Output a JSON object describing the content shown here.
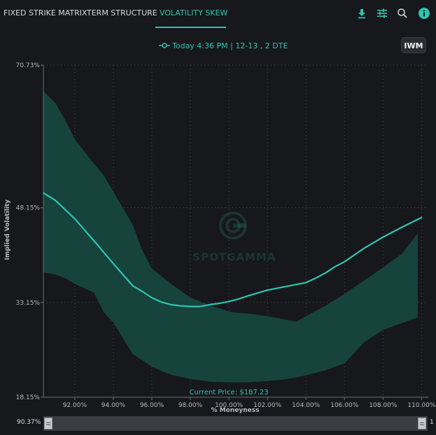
{
  "tabs": [
    {
      "label": "FIXED STRIKE MATRIX",
      "active": false
    },
    {
      "label": "TERM STRUCTURE",
      "active": false
    },
    {
      "label": "VOLATILITY SKEW",
      "active": true
    }
  ],
  "toolbar": {
    "icons": [
      "download-icon",
      "sliders-icon",
      "search-icon",
      "info-icon"
    ]
  },
  "legend": {
    "label": "Today 4:36 PM | 12-13 , 2 DTE"
  },
  "symbol_button": {
    "label": "IWM"
  },
  "watermark": {
    "text": "SPOTGAMMA"
  },
  "range": {
    "left_label": "90.37%",
    "right_label": "1"
  },
  "colors": {
    "accent": "#2fc4b0",
    "band_fill": "#17433d",
    "background": "#17181c"
  },
  "chart_data": {
    "type": "area",
    "xlabel": "% Moneyness",
    "ylabel": "Implied Volatility",
    "xlim": [
      90.37,
      110.35
    ],
    "ylim": [
      18.15,
      70.73
    ],
    "x_ticks": [
      92,
      94,
      96,
      98,
      100,
      102,
      104,
      106,
      108,
      110
    ],
    "x_tick_labels": [
      "92.00%",
      "94.00%",
      "96.00%",
      "98.00%",
      "100.00%",
      "102.00%",
      "104.00%",
      "106.00%",
      "108.00%",
      "110.00%"
    ],
    "y_ticks": [
      18.15,
      33.15,
      48.15,
      70.73
    ],
    "y_tick_labels": [
      "18.15%",
      "33.15%",
      "48.15%",
      "70.73%"
    ],
    "grid": true,
    "annotation": {
      "text": "Current Price: $187.23",
      "x": 100.0
    },
    "series": [
      {
        "name": "Today 4:36 PM | 12-13 , 2 DTE",
        "kind": "line",
        "x": [
          90.37,
          91,
          92,
          93,
          94,
          95,
          95.5,
          96,
          96.5,
          97,
          97.5,
          98,
          98.5,
          99,
          99.5,
          100,
          100.5,
          101,
          102,
          103,
          104,
          104.5,
          105,
          105.5,
          106,
          107,
          108,
          109,
          110
        ],
        "y": [
          50.5,
          49.3,
          46.4,
          42.9,
          39.3,
          35.8,
          34.9,
          33.9,
          33.2,
          32.8,
          32.6,
          32.5,
          32.5,
          32.8,
          33.0,
          33.3,
          33.7,
          34.2,
          35.1,
          35.7,
          36.3,
          37.0,
          37.8,
          38.8,
          39.6,
          41.7,
          43.5,
          45.1,
          46.6
        ]
      },
      {
        "name": "",
        "kind": "band",
        "x": [
          90.37,
          91,
          91.5,
          92,
          93,
          93.5,
          94,
          95,
          95.5,
          96,
          96.5,
          97,
          98,
          99,
          100,
          100.5,
          101,
          102,
          103,
          103.5,
          104,
          105,
          106,
          107,
          108,
          109,
          109.8
        ],
        "upper": [
          66.6,
          64.7,
          62.0,
          59.0,
          55.1,
          53.3,
          50.7,
          45.5,
          41.4,
          38.5,
          37.3,
          36.1,
          33.9,
          32.7,
          31.7,
          31.5,
          31.4,
          31.0,
          30.4,
          30.1,
          31.0,
          32.6,
          34.5,
          36.6,
          38.7,
          40.9,
          44.1
        ],
        "lower": [
          37.9,
          37.6,
          37.0,
          36.1,
          34.7,
          31.6,
          30.0,
          25.0,
          24.0,
          23.0,
          22.3,
          21.7,
          21.0,
          20.6,
          20.5,
          20.5,
          20.5,
          20.7,
          21.0,
          21.3,
          21.6,
          22.4,
          23.5,
          26.8,
          28.8,
          29.9,
          30.8
        ]
      }
    ]
  }
}
